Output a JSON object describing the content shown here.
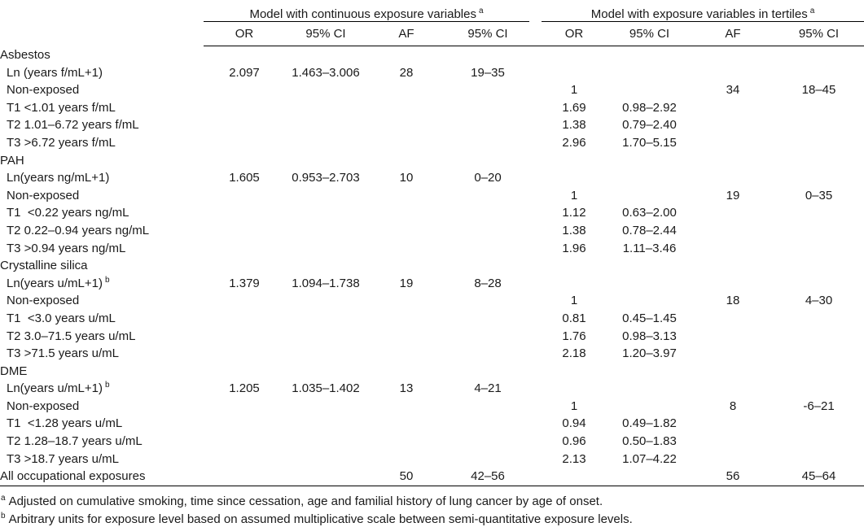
{
  "table": {
    "groups": [
      {
        "label": "Model with continuous exposure variables",
        "sup": "a"
      },
      {
        "label": "Model with exposure variables in tertiles",
        "sup": "a"
      }
    ],
    "subheaders": [
      "OR",
      "95% CI",
      "AF",
      "95% CI",
      "OR",
      "95% CI",
      "AF",
      "95% CI"
    ],
    "rows": [
      {
        "label": "Asbestos",
        "indent": 0,
        "sup": "",
        "cells": [
          "",
          "",
          "",
          "",
          "",
          "",
          "",
          ""
        ]
      },
      {
        "label": "Ln (years f/mL+1)",
        "indent": 1,
        "sup": "",
        "cells": [
          "2.097",
          "1.463–3.006",
          "28",
          "19–35",
          "",
          "",
          "",
          ""
        ]
      },
      {
        "label": "Non-exposed",
        "indent": 1,
        "sup": "",
        "cells": [
          "",
          "",
          "",
          "",
          "1",
          "",
          "34",
          "18–45"
        ]
      },
      {
        "label": "T1 <1.01 years f/mL",
        "indent": 1,
        "sup": "",
        "cells": [
          "",
          "",
          "",
          "",
          "1.69",
          "0.98–2.92",
          "",
          ""
        ]
      },
      {
        "label": "T2 1.01–6.72 years f/mL",
        "indent": 1,
        "sup": "",
        "cells": [
          "",
          "",
          "",
          "",
          "1.38",
          "0.79–2.40",
          "",
          ""
        ]
      },
      {
        "label": "T3 >6.72 years f/mL",
        "indent": 1,
        "sup": "",
        "cells": [
          "",
          "",
          "",
          "",
          "2.96",
          "1.70–5.15",
          "",
          ""
        ]
      },
      {
        "label": "PAH",
        "indent": 0,
        "sup": "",
        "cells": [
          "",
          "",
          "",
          "",
          "",
          "",
          "",
          ""
        ]
      },
      {
        "label": "Ln(years ng/mL+1)",
        "indent": 1,
        "sup": "",
        "cells": [
          "1.605",
          "0.953–2.703",
          "10",
          "0–20",
          "",
          "",
          "",
          ""
        ]
      },
      {
        "label": "Non-exposed",
        "indent": 1,
        "sup": "",
        "cells": [
          "",
          "",
          "",
          "",
          "1",
          "",
          "19",
          "0–35"
        ]
      },
      {
        "label": "T1  <0.22 years ng/mL",
        "indent": 1,
        "sup": "",
        "cells": [
          "",
          "",
          "",
          "",
          "1.12",
          "0.63–2.00",
          "",
          ""
        ]
      },
      {
        "label": "T2 0.22–0.94 years ng/mL",
        "indent": 1,
        "sup": "",
        "cells": [
          "",
          "",
          "",
          "",
          "1.38",
          "0.78–2.44",
          "",
          ""
        ]
      },
      {
        "label": "T3 >0.94 years ng/mL",
        "indent": 1,
        "sup": "",
        "cells": [
          "",
          "",
          "",
          "",
          "1.96",
          "1.11–3.46",
          "",
          ""
        ]
      },
      {
        "label": "Crystalline silica",
        "indent": 0,
        "sup": "",
        "cells": [
          "",
          "",
          "",
          "",
          "",
          "",
          "",
          ""
        ]
      },
      {
        "label": "Ln(years u/mL+1)",
        "indent": 1,
        "sup": "b",
        "cells": [
          "1.379",
          "1.094–1.738",
          "19",
          "8–28",
          "",
          "",
          "",
          ""
        ]
      },
      {
        "label": "Non-exposed",
        "indent": 1,
        "sup": "",
        "cells": [
          "",
          "",
          "",
          "",
          "1",
          "",
          "18",
          "4–30"
        ]
      },
      {
        "label": "T1  <3.0 years u/mL",
        "indent": 1,
        "sup": "",
        "cells": [
          "",
          "",
          "",
          "",
          "0.81",
          "0.45–1.45",
          "",
          ""
        ]
      },
      {
        "label": "T2 3.0–71.5 years u/mL",
        "indent": 1,
        "sup": "",
        "cells": [
          "",
          "",
          "",
          "",
          "1.76",
          "0.98–3.13",
          "",
          ""
        ]
      },
      {
        "label": "T3 >71.5 years u/mL",
        "indent": 1,
        "sup": "",
        "cells": [
          "",
          "",
          "",
          "",
          "2.18",
          "1.20–3.97",
          "",
          ""
        ]
      },
      {
        "label": "DME",
        "indent": 0,
        "sup": "",
        "cells": [
          "",
          "",
          "",
          "",
          "",
          "",
          "",
          ""
        ]
      },
      {
        "label": "Ln(years u/mL+1)",
        "indent": 1,
        "sup": "b",
        "cells": [
          "1.205",
          "1.035–1.402",
          "13",
          "4–21",
          "",
          "",
          "",
          ""
        ]
      },
      {
        "label": "Non-exposed",
        "indent": 1,
        "sup": "",
        "cells": [
          "",
          "",
          "",
          "",
          "1",
          "",
          "8",
          "-6–21"
        ]
      },
      {
        "label": "T1  <1.28 years u/mL",
        "indent": 1,
        "sup": "",
        "cells": [
          "",
          "",
          "",
          "",
          "0.94",
          "0.49–1.82",
          "",
          ""
        ]
      },
      {
        "label": "T2 1.28–18.7 years u/mL",
        "indent": 1,
        "sup": "",
        "cells": [
          "",
          "",
          "",
          "",
          "0.96",
          "0.50–1.83",
          "",
          ""
        ]
      },
      {
        "label": "T3 >18.7 years u/mL",
        "indent": 1,
        "sup": "",
        "cells": [
          "",
          "",
          "",
          "",
          "2.13",
          "1.07–4.22",
          "",
          ""
        ]
      },
      {
        "label": "All occupational exposures",
        "indent": 0,
        "sup": "",
        "cells": [
          "",
          "",
          "50",
          "42–56",
          "",
          "",
          "56",
          "45–64"
        ]
      }
    ],
    "footnotes": [
      {
        "sup": "a",
        "text": "Adjusted on cumulative smoking, time since cessation, age and familial history of lung cancer by age of onset."
      },
      {
        "sup": "b",
        "text": "Arbitrary units for exposure level based on assumed multiplicative scale between semi-quantitative exposure levels."
      }
    ]
  }
}
